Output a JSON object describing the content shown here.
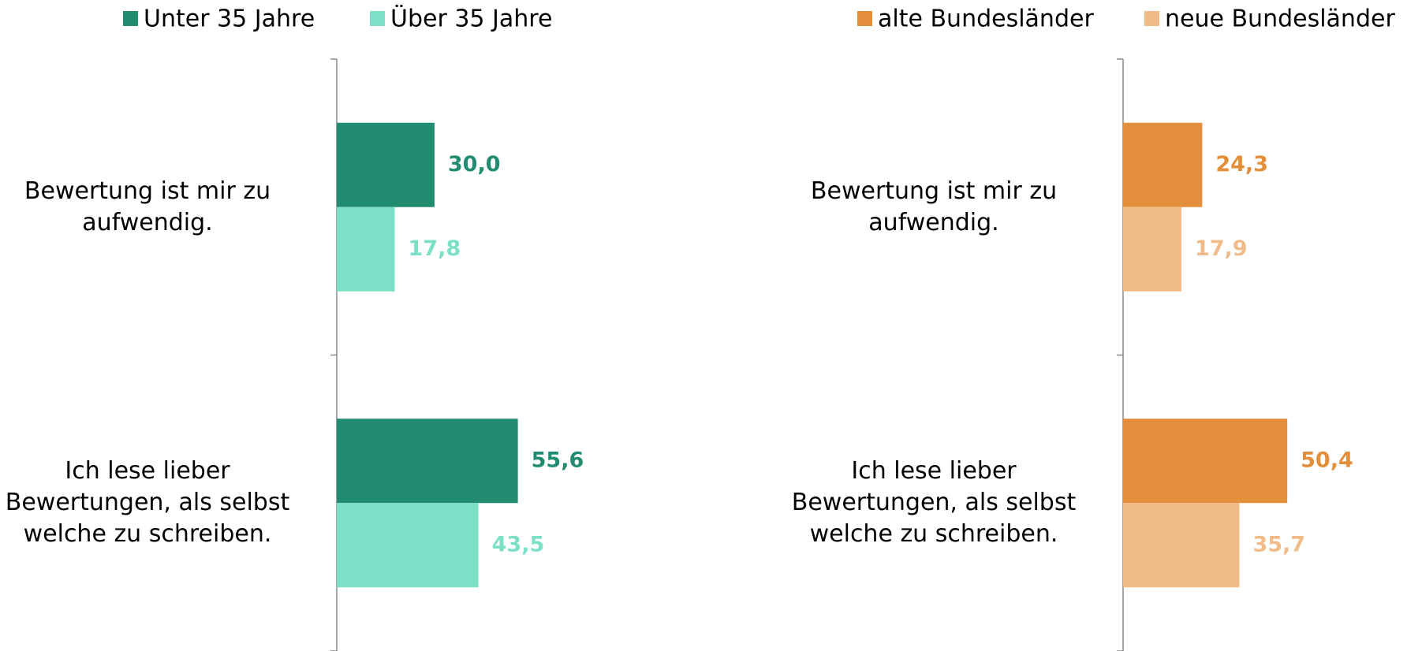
{
  "chart_data": [
    {
      "type": "bar",
      "horizontal": true,
      "categories": [
        "Bewertung ist mir zu aufwendig.",
        "Ich lese lieber Bewertungen, als selbst welche zu schreiben."
      ],
      "series": [
        {
          "name": "Unter 35 Jahre",
          "color": "#218c6f",
          "values": [
            30.0,
            55.6
          ],
          "value_labels": [
            "30,0",
            "55,6"
          ]
        },
        {
          "name": "Über 35 Jahre",
          "color": "#7be0c6",
          "values": [
            17.8,
            43.5
          ],
          "value_labels": [
            "17,8",
            "43,5"
          ]
        }
      ],
      "xlim": [
        0,
        100
      ]
    },
    {
      "type": "bar",
      "horizontal": true,
      "categories": [
        "Bewertung ist mir zu aufwendig.",
        "Ich lese lieber Bewertungen, als selbst welche zu schreiben."
      ],
      "series": [
        {
          "name": "alte Bundesländer",
          "color": "#e38e3a",
          "values": [
            24.3,
            50.4
          ],
          "value_labels": [
            "24,3",
            "50,4"
          ]
        },
        {
          "name": "neue Bundesländer",
          "color": "#f0bb88",
          "values": [
            17.9,
            35.7
          ],
          "value_labels": [
            "17,9",
            "35,7"
          ]
        }
      ],
      "xlim": [
        0,
        100
      ]
    }
  ]
}
